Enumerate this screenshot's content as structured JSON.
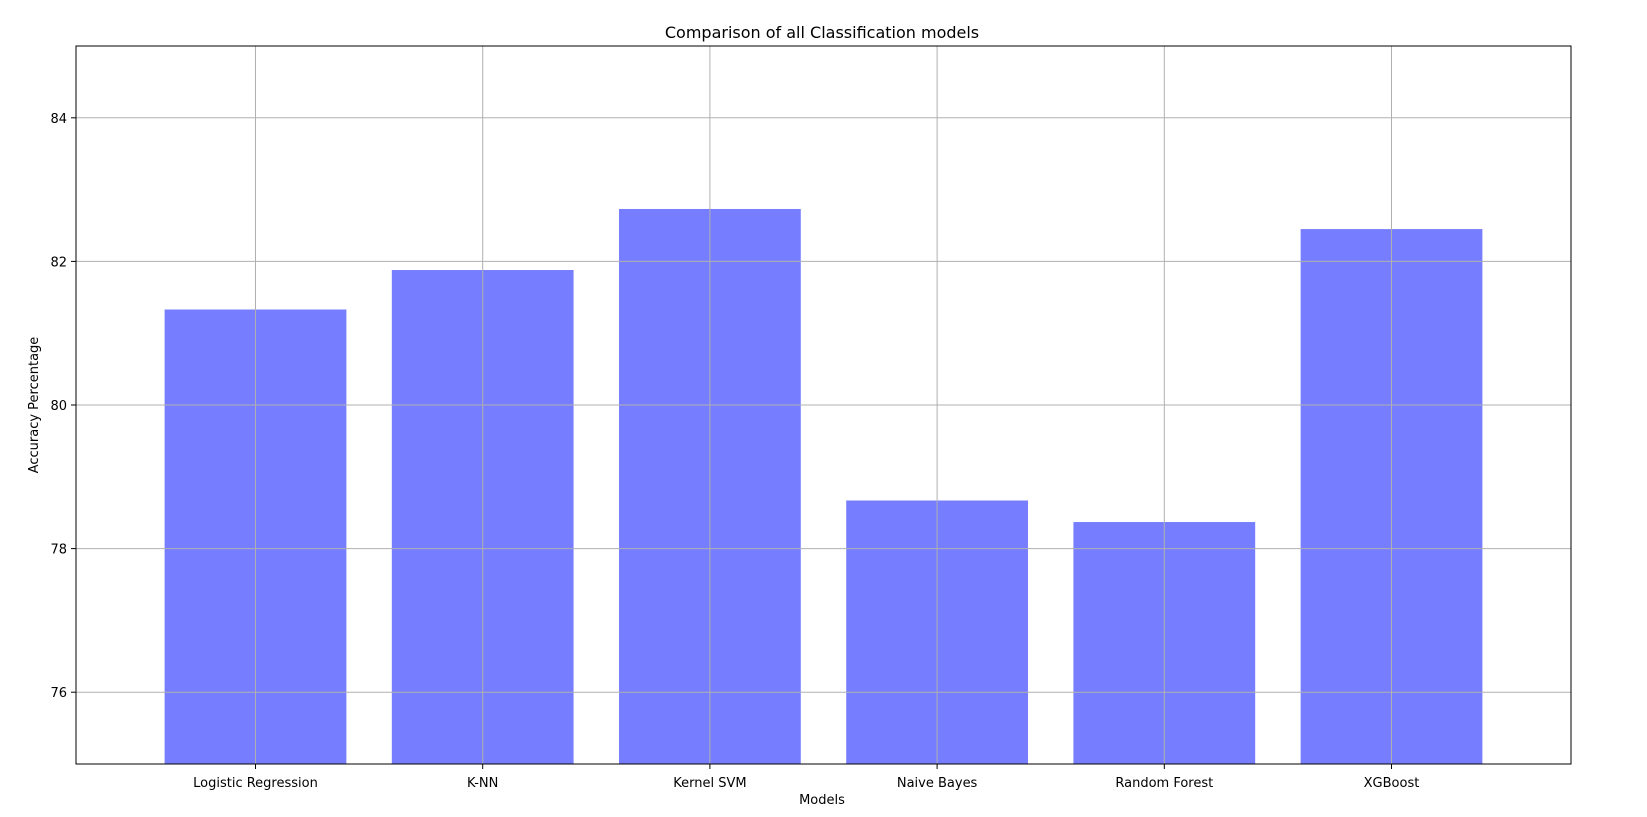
{
  "chart_data": {
    "type": "bar",
    "title": "Comparison of all Classification models",
    "xlabel": "Models",
    "ylabel": "Accuracy Percentage",
    "categories": [
      "Logistic Regression",
      "K-NN",
      "Kernel SVM",
      "Naive Bayes",
      "Random Forest",
      "XGBoost"
    ],
    "values": [
      81.33,
      81.88,
      82.73,
      78.67,
      78.37,
      82.45
    ],
    "ylim": [
      75,
      85
    ],
    "yticks": [
      76,
      78,
      80,
      82,
      84
    ],
    "grid": true,
    "bar_color": "#767eff",
    "grid_color": "#b0b0b0"
  }
}
